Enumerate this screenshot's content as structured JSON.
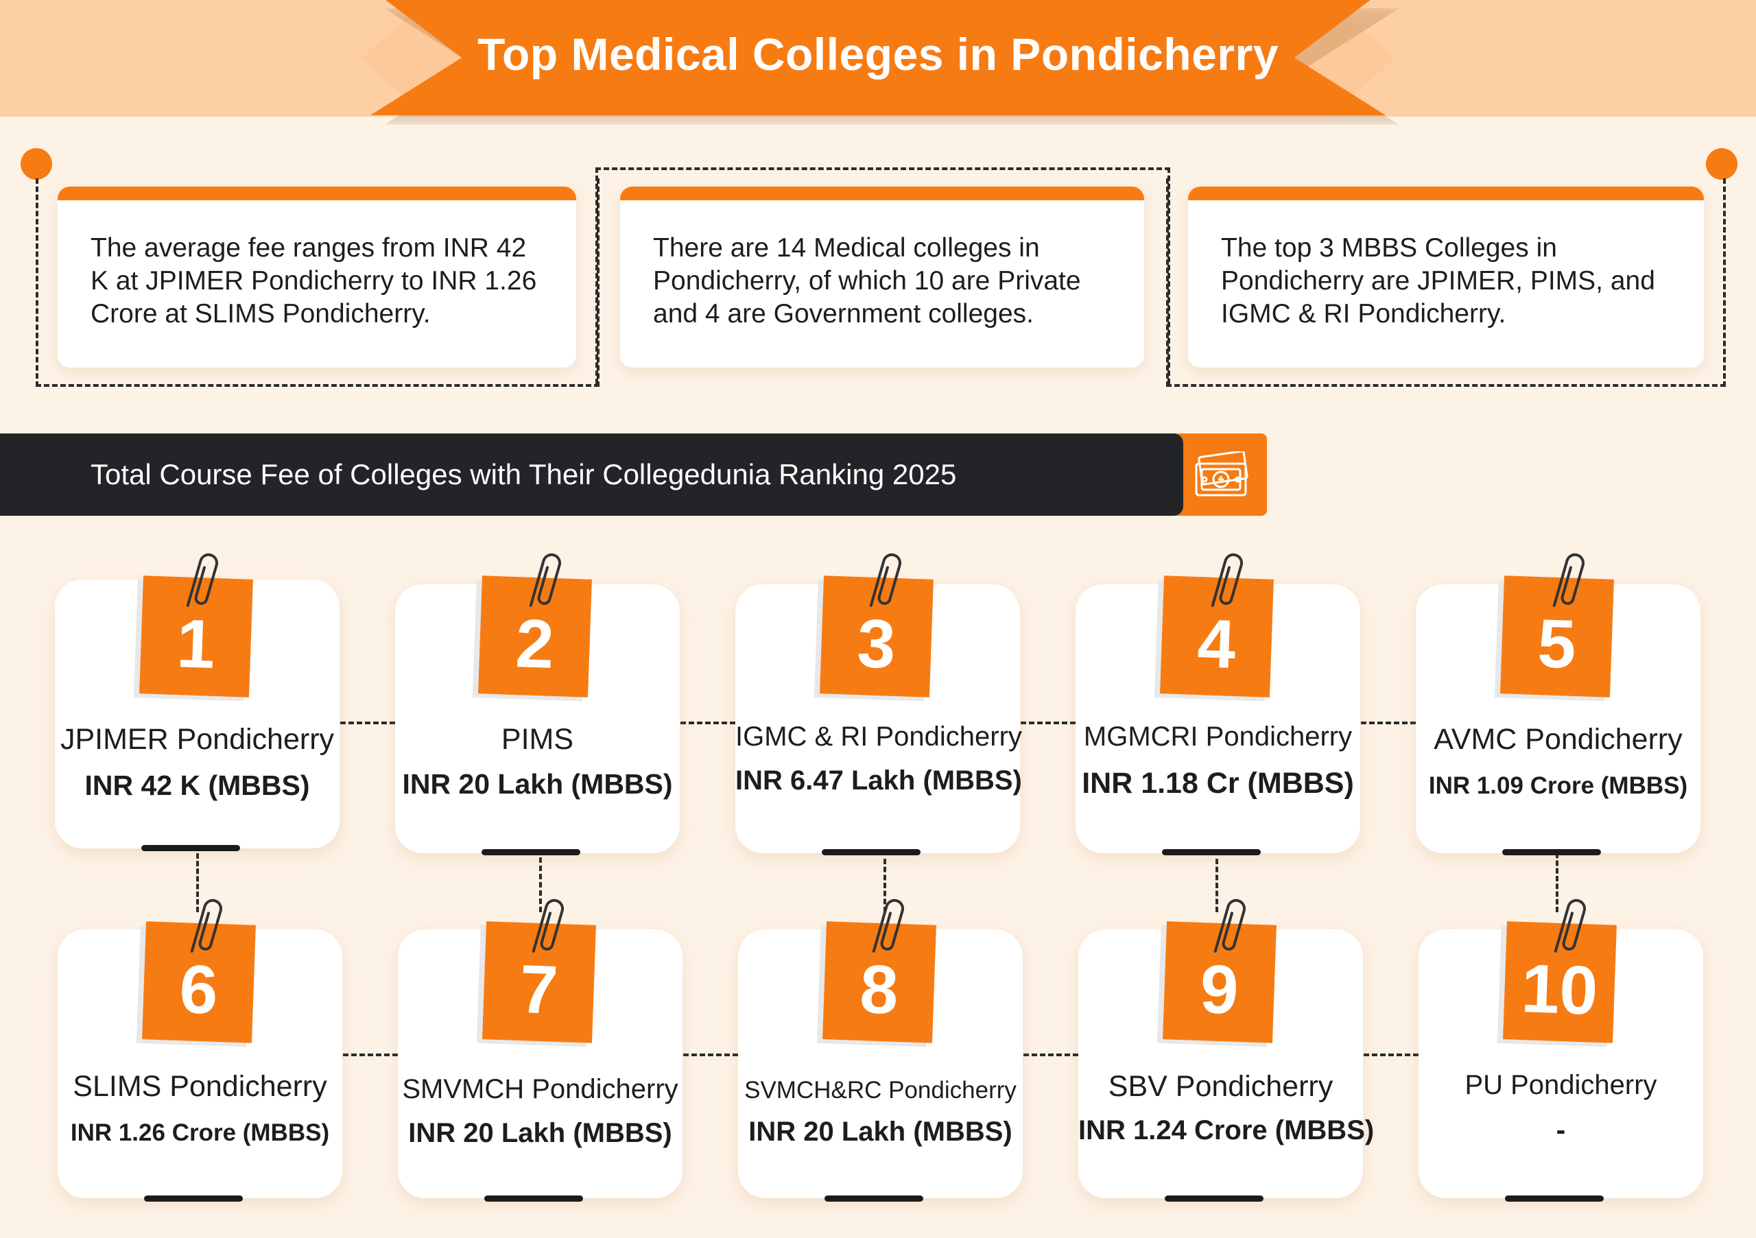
{
  "title": "Top Medical Colleges in Pondicherry",
  "facts": [
    "The average fee ranges from INR 42 K at JPIMER Pondicherry to INR 1.26 Crore at SLIMS Pondicherry.",
    "There are 14 Medical colleges in Pondicherry, of which 10 are Private and 4 are Government colleges.",
    "The top 3 MBBS Colleges in Pondicherry are JPIMER, PIMS, and IGMC & RI Pondicherry."
  ],
  "section": {
    "title": "Total Course Fee of Colleges with Their Collegedunia Ranking 2025",
    "icon": "money-icon"
  },
  "colleges": [
    {
      "rank": "1",
      "name": "JPIMER Pondicherry",
      "fee": "INR 42 K (MBBS)"
    },
    {
      "rank": "2",
      "name": "PIMS",
      "fee": "INR 20 Lakh (MBBS)"
    },
    {
      "rank": "3",
      "name": "IGMC & RI Pondicherry",
      "fee": "INR 6.47 Lakh (MBBS)"
    },
    {
      "rank": "4",
      "name": "MGMCRI Pondicherry",
      "fee": "INR 1.18 Cr (MBBS)"
    },
    {
      "rank": "5",
      "name": "AVMC Pondicherry",
      "fee": "INR 1.09 Crore (MBBS)"
    },
    {
      "rank": "6",
      "name": "SLIMS Pondicherry",
      "fee": "INR 1.26 Crore (MBBS)"
    },
    {
      "rank": "7",
      "name": "SMVMCH Pondicherry",
      "fee": "INR 20 Lakh (MBBS)"
    },
    {
      "rank": "8",
      "name": "SVMCH&RC Pondicherry",
      "fee": "INR 20 Lakh (MBBS)"
    },
    {
      "rank": "9",
      "name": "SBV Pondicherry",
      "fee": "INR 1.24 Crore (MBBS)"
    },
    {
      "rank": "10",
      "name": "PU Pondicherry",
      "fee": "-"
    }
  ],
  "colors": {
    "accent": "#f77b13",
    "dark": "#232427",
    "background": "#fdf2e6"
  }
}
